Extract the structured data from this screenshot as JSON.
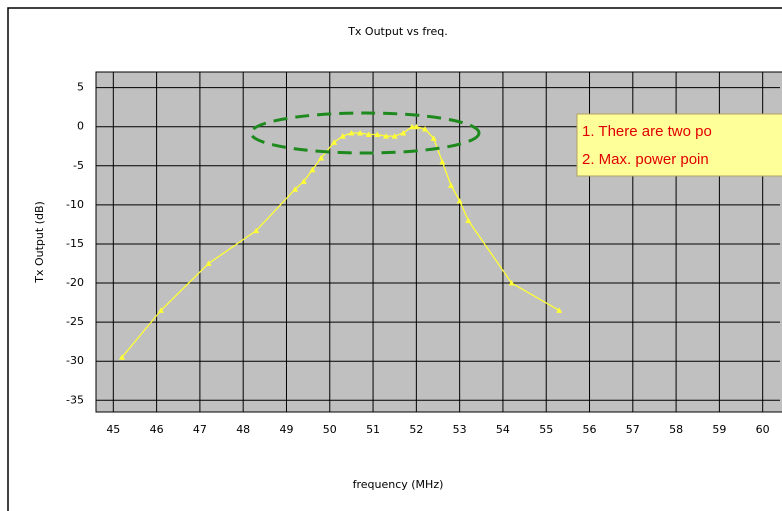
{
  "chart_data": {
    "type": "line",
    "title": "Tx Output vs freq.",
    "xlabel": "frequency (MHz)",
    "ylabel": "Tx Output (dB)",
    "xlim": [
      44.6,
      60.4
    ],
    "ylim": [
      -36.5,
      7
    ],
    "xticks": [
      45,
      46,
      47,
      48,
      49,
      50,
      51,
      52,
      53,
      54,
      55,
      56,
      57,
      58,
      59,
      60
    ],
    "yticks": [
      5,
      0,
      -5,
      -10,
      -15,
      -20,
      -25,
      -30,
      -35
    ],
    "grid": true,
    "series": [
      {
        "color": "#ffff33",
        "x": [
          45.2,
          46.1,
          47.2,
          48.3,
          49.2,
          49.4,
          49.6,
          49.8,
          50.1,
          50.3,
          50.5,
          50.7,
          50.9,
          51.1,
          51.3,
          51.5,
          51.7,
          51.9,
          52.0,
          52.2,
          52.4,
          52.6,
          52.8,
          53.0,
          53.2,
          54.2,
          55.3
        ],
        "values": [
          -29.5,
          -23.5,
          -17.5,
          -13.3,
          -8,
          -7,
          -5.5,
          -4,
          -2,
          -1.2,
          -0.8,
          -0.8,
          -1,
          -1,
          -1.2,
          -1.2,
          -0.8,
          0,
          0,
          -0.3,
          -1.5,
          -4.5,
          -7.5,
          -9.5,
          -12,
          -20,
          -23.5
        ]
      }
    ],
    "annotations": [
      "1. There are two po",
      "2. Max. power poin"
    ]
  }
}
